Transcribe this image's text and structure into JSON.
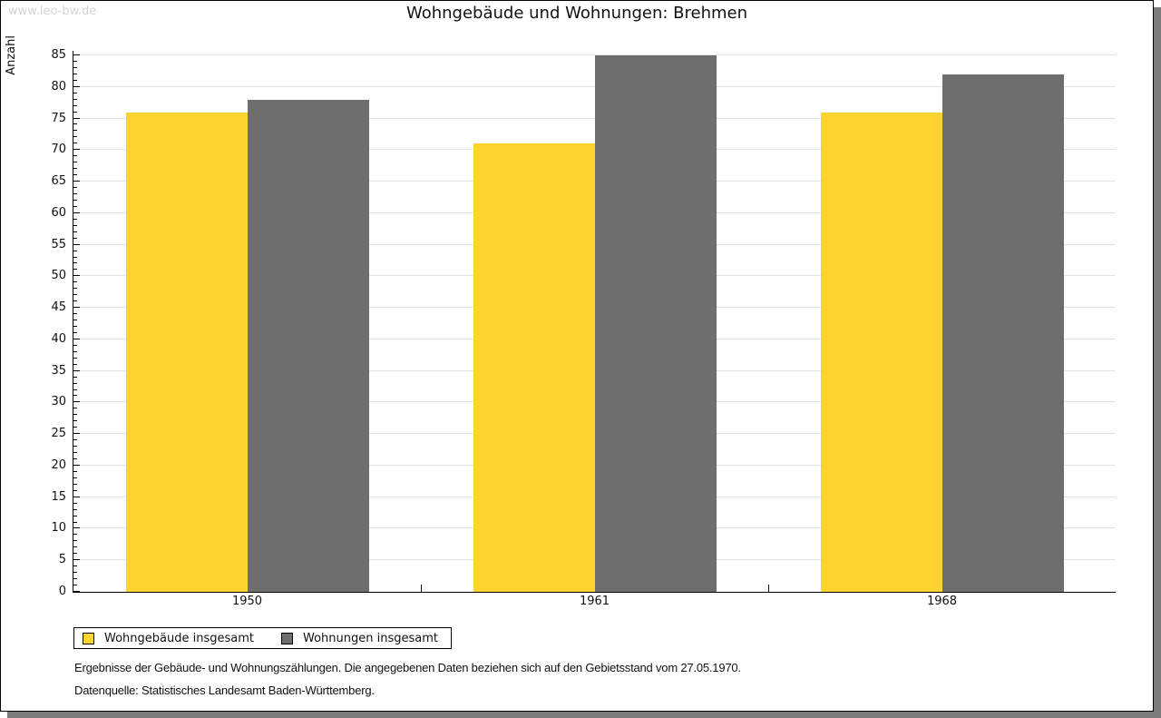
{
  "page": {
    "watermark": "www.leo-bw.de",
    "footer_line1": "Ergebnisse der Gebäude- und Wohnungszählungen. Die angegebenen Daten beziehen sich auf den Gebietsstand vom 27.05.1970.",
    "footer_line2": "Datenquelle: Statistisches Landesamt Baden-Württemberg."
  },
  "chart_data": {
    "type": "bar",
    "title": "Wohngebäude und Wohnungen: Brehmen",
    "ylabel": "Anzahl",
    "xlabel": "",
    "categories": [
      "1950",
      "1961",
      "1968"
    ],
    "series": [
      {
        "name": "Wohngebäude insgesamt",
        "color": "#FCD42D",
        "values": [
          76,
          71,
          76
        ]
      },
      {
        "name": "Wohnungen insgesamt",
        "color": "#6E6E6E",
        "values": [
          78,
          85,
          82
        ]
      }
    ],
    "ylim": [
      0,
      85
    ],
    "ytick_step": 5,
    "yminor_step": 1,
    "grid": true,
    "legend_position": "bottom-left",
    "colors": {
      "grid": "#E4E4E4",
      "axis": "#000000",
      "background": "#FFFFFF",
      "panel_shadow": "#7D7D7D",
      "watermark_text": "#D4D4D4"
    }
  }
}
